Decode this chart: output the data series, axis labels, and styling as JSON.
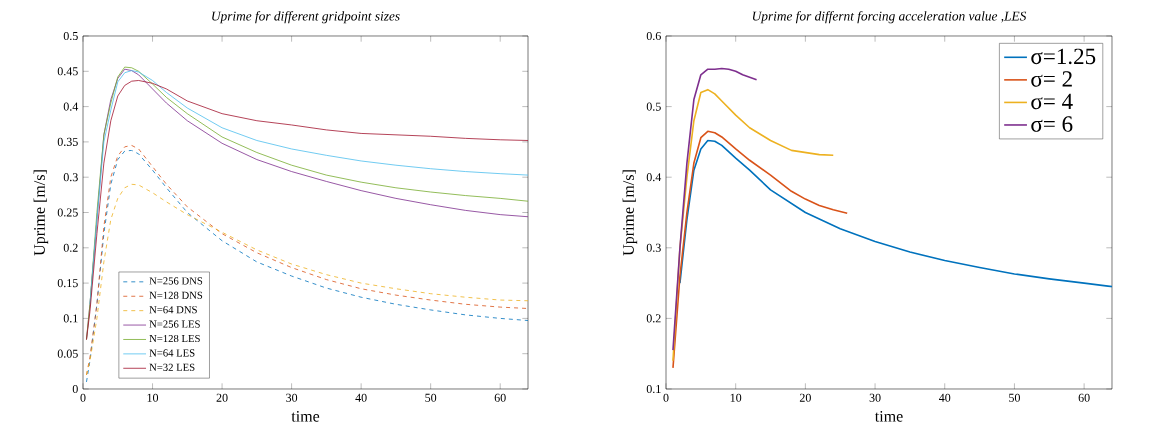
{
  "chart_data": [
    {
      "type": "line",
      "title": "Uprime for different gridpoint sizes",
      "xlabel": "time",
      "ylabel": "Uprime [m/s]",
      "xlim": [
        0,
        64
      ],
      "ylim": [
        0,
        0.5
      ],
      "xticks": [
        0,
        10,
        20,
        30,
        40,
        50,
        60
      ],
      "yticks": [
        0,
        0.05,
        0.1,
        0.15,
        0.2,
        0.25,
        0.3,
        0.35,
        0.4,
        0.45,
        0.5
      ],
      "legend": "bottom left",
      "x": [
        0.5,
        1,
        2,
        3,
        4,
        5,
        6,
        7,
        8,
        10,
        12,
        15,
        20,
        25,
        30,
        35,
        40,
        45,
        50,
        55,
        60,
        64
      ],
      "series": [
        {
          "name": "N=256 DNS",
          "color": "#0072bd",
          "line_style": "dashed",
          "values": [
            0.01,
            0.04,
            0.12,
            0.22,
            0.29,
            0.325,
            0.337,
            0.338,
            0.333,
            0.31,
            0.285,
            0.25,
            0.21,
            0.18,
            0.16,
            0.143,
            0.13,
            0.12,
            0.112,
            0.105,
            0.1,
            0.097
          ]
        },
        {
          "name": "N=128 DNS",
          "color": "#d95319",
          "line_style": "dashed",
          "values": [
            0.02,
            0.045,
            0.12,
            0.23,
            0.3,
            0.33,
            0.343,
            0.345,
            0.34,
            0.315,
            0.29,
            0.258,
            0.22,
            0.193,
            0.172,
            0.155,
            0.142,
            0.133,
            0.126,
            0.12,
            0.116,
            0.114
          ]
        },
        {
          "name": "N=64 DNS",
          "color": "#edb120",
          "line_style": "dashed",
          "values": [
            0.02,
            0.04,
            0.1,
            0.18,
            0.24,
            0.27,
            0.285,
            0.29,
            0.289,
            0.278,
            0.265,
            0.247,
            0.222,
            0.197,
            0.177,
            0.162,
            0.15,
            0.142,
            0.135,
            0.13,
            0.126,
            0.125
          ]
        },
        {
          "name": "N=256 LES",
          "color": "#7e2f8e",
          "line_style": "solid",
          "values": [
            0.07,
            0.12,
            0.24,
            0.36,
            0.41,
            0.44,
            0.453,
            0.451,
            0.445,
            0.425,
            0.405,
            0.38,
            0.348,
            0.325,
            0.308,
            0.294,
            0.281,
            0.27,
            0.261,
            0.253,
            0.247,
            0.244
          ]
        },
        {
          "name": "N=128 LES",
          "color": "#77ac30",
          "line_style": "solid",
          "values": [
            0.07,
            0.12,
            0.25,
            0.36,
            0.405,
            0.442,
            0.456,
            0.455,
            0.45,
            0.432,
            0.413,
            0.39,
            0.357,
            0.335,
            0.317,
            0.303,
            0.293,
            0.285,
            0.279,
            0.274,
            0.27,
            0.266
          ]
        },
        {
          "name": "N=64 LES",
          "color": "#4dbeee",
          "line_style": "solid",
          "values": [
            null,
            0.12,
            0.24,
            0.35,
            0.395,
            0.435,
            0.448,
            0.451,
            0.449,
            0.437,
            0.42,
            0.398,
            0.37,
            0.352,
            0.34,
            0.331,
            0.323,
            0.317,
            0.312,
            0.308,
            0.305,
            0.303
          ]
        },
        {
          "name": "N=32 LES",
          "color": "#a2142f",
          "line_style": "solid",
          "values": [
            0.07,
            0.11,
            0.22,
            0.32,
            0.38,
            0.415,
            0.43,
            0.436,
            0.437,
            0.433,
            0.425,
            0.408,
            0.39,
            0.38,
            0.374,
            0.367,
            0.362,
            0.36,
            0.358,
            0.355,
            0.353,
            0.352
          ]
        }
      ]
    },
    {
      "type": "line",
      "title": "Uprime for differnt forcing acceleration value ,LES",
      "xlabel": "time",
      "ylabel": "Uprime [m/s]",
      "xlim": [
        0,
        64
      ],
      "ylim": [
        0.1,
        0.6
      ],
      "xticks": [
        0,
        10,
        20,
        30,
        40,
        50,
        60
      ],
      "yticks": [
        0.1,
        0.2,
        0.3,
        0.4,
        0.5,
        0.6
      ],
      "legend": "top right",
      "series": [
        {
          "name": "σ=1.25",
          "color": "#0072bd",
          "x": [
            2,
            3,
            4,
            5,
            6,
            7,
            8,
            10,
            12,
            15,
            20,
            25,
            30,
            35,
            40,
            45,
            50,
            55,
            60,
            64
          ],
          "values": [
            0.25,
            0.34,
            0.41,
            0.44,
            0.452,
            0.451,
            0.445,
            0.427,
            0.41,
            0.382,
            0.35,
            0.327,
            0.309,
            0.294,
            0.282,
            0.272,
            0.263,
            0.256,
            0.25,
            0.245
          ]
        },
        {
          "name": "σ= 2",
          "color": "#d95319",
          "x": [
            1,
            2,
            3,
            4,
            5,
            6,
            7,
            8,
            10,
            12,
            15,
            18,
            20,
            22,
            24,
            26
          ],
          "values": [
            0.13,
            0.26,
            0.35,
            0.42,
            0.456,
            0.465,
            0.463,
            0.457,
            0.44,
            0.424,
            0.403,
            0.38,
            0.369,
            0.36,
            0.354,
            0.349
          ]
        },
        {
          "name": "σ= 4",
          "color": "#edb120",
          "x": [
            1,
            2,
            3,
            4,
            5,
            6,
            7,
            8,
            10,
            12,
            15,
            18,
            20,
            22,
            24
          ],
          "values": [
            0.14,
            0.3,
            0.4,
            0.48,
            0.52,
            0.524,
            0.518,
            0.508,
            0.488,
            0.47,
            0.452,
            0.438,
            0.435,
            0.432,
            0.431
          ]
        },
        {
          "name": "σ= 6",
          "color": "#7e2f8e",
          "x": [
            1,
            2,
            3,
            4,
            5,
            6,
            7,
            8,
            9,
            10,
            11,
            13
          ],
          "values": [
            0.155,
            0.3,
            0.42,
            0.51,
            0.545,
            0.553,
            0.553,
            0.554,
            0.553,
            0.55,
            0.545,
            0.538
          ]
        }
      ]
    }
  ]
}
